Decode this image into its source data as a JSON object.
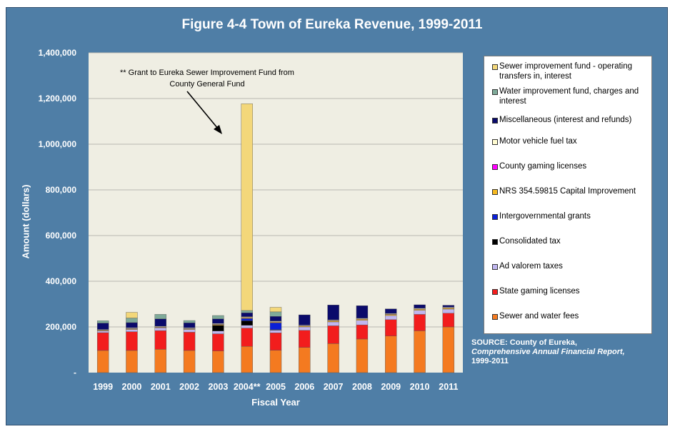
{
  "title": "Figure 4-4 Town of Eureka  Revenue, 1999-2011",
  "source": {
    "line1": "SOURCE: County of Eureka,",
    "line2": "Comprehensive Annual Financial Report,",
    "line3": "1999-2011"
  },
  "annotation": {
    "line1": "** Grant to Eureka Sewer Improvement Fund from",
    "line2": "County General Fund"
  },
  "chart_data": {
    "type": "bar",
    "stacked": true,
    "title": "Figure 4-4 Town of Eureka  Revenue, 1999-2011",
    "xlabel": "Fiscal Year",
    "ylabel": "Amount (dollars)",
    "ylim": [
      0,
      1400000
    ],
    "yticks": [
      0,
      200000,
      400000,
      600000,
      800000,
      1000000,
      1200000,
      1400000
    ],
    "ytick_labels": [
      "-",
      "200,000",
      "400,000",
      "600,000",
      "800,000",
      "1,000,000",
      "1,200,000",
      "1,400,000"
    ],
    "grid": true,
    "legend_position": "right",
    "categories": [
      "1999",
      "2000",
      "2001",
      "2002",
      "2003",
      "2004**",
      "2005",
      "2006",
      "2007",
      "2008",
      "2009",
      "2010",
      "2011"
    ],
    "series": [
      {
        "name": "Sewer and water fees",
        "color": "#f47a20",
        "values": [
          97000,
          97000,
          102000,
          97000,
          95000,
          115000,
          98000,
          110000,
          127000,
          147000,
          160000,
          183000,
          200000
        ]
      },
      {
        "name": "State gaming licenses",
        "color": "#f21d1d",
        "values": [
          78000,
          82000,
          82000,
          80000,
          75000,
          80000,
          76000,
          75000,
          78000,
          62000,
          72000,
          72000,
          60000
        ]
      },
      {
        "name": "Ad valorem taxes",
        "color": "#c0b6ef",
        "values": [
          7000,
          10000,
          12000,
          12000,
          12000,
          12000,
          12000,
          15000,
          17000,
          20000,
          18000,
          18000,
          18000
        ]
      },
      {
        "name": "Consolidated tax",
        "color": "#000000",
        "values": [
          0,
          0,
          0,
          0,
          25000,
          20000,
          2000,
          0,
          0,
          0,
          0,
          0,
          0
        ]
      },
      {
        "name": "Intergovernmental grants",
        "color": "#0b1fd6",
        "values": [
          0,
          0,
          0,
          0,
          0,
          10000,
          30000,
          0,
          0,
          0,
          0,
          0,
          0
        ]
      },
      {
        "name": "NRS 354.59815 Capital Improvement",
        "color": "#f5b81f",
        "values": [
          3000,
          3000,
          3000,
          3000,
          4000,
          4000,
          4000,
          4000,
          5000,
          5000,
          5000,
          5000,
          5000
        ]
      },
      {
        "name": "County gaming licenses",
        "color": "#ff00ff",
        "values": [
          1000,
          1000,
          1000,
          1000,
          1000,
          1000,
          1000,
          1000,
          1000,
          1000,
          1000,
          1000,
          1000
        ]
      },
      {
        "name": "Motor vehicle fuel tax",
        "color": "#fffbd0",
        "values": [
          3000,
          3000,
          3000,
          3000,
          3000,
          3000,
          3000,
          3000,
          3000,
          3000,
          3000,
          3000,
          3000
        ]
      },
      {
        "name": "Miscellaneous (interest and refunds)",
        "color": "#0a0a6b",
        "values": [
          28000,
          23000,
          32000,
          22000,
          20000,
          17000,
          20000,
          45000,
          65000,
          55000,
          20000,
          15000,
          8000
        ]
      },
      {
        "name": "Water improvement fund, charges and interest",
        "color": "#7faa99",
        "values": [
          10000,
          20000,
          20000,
          10000,
          15000,
          10000,
          20000,
          0,
          0,
          0,
          0,
          0,
          0
        ]
      },
      {
        "name": "Sewer improvement fund - operating transfers in, interest",
        "color": "#f3d77a",
        "values": [
          0,
          25000,
          0,
          0,
          0,
          905000,
          20000,
          0,
          0,
          0,
          0,
          0,
          0
        ]
      }
    ]
  }
}
